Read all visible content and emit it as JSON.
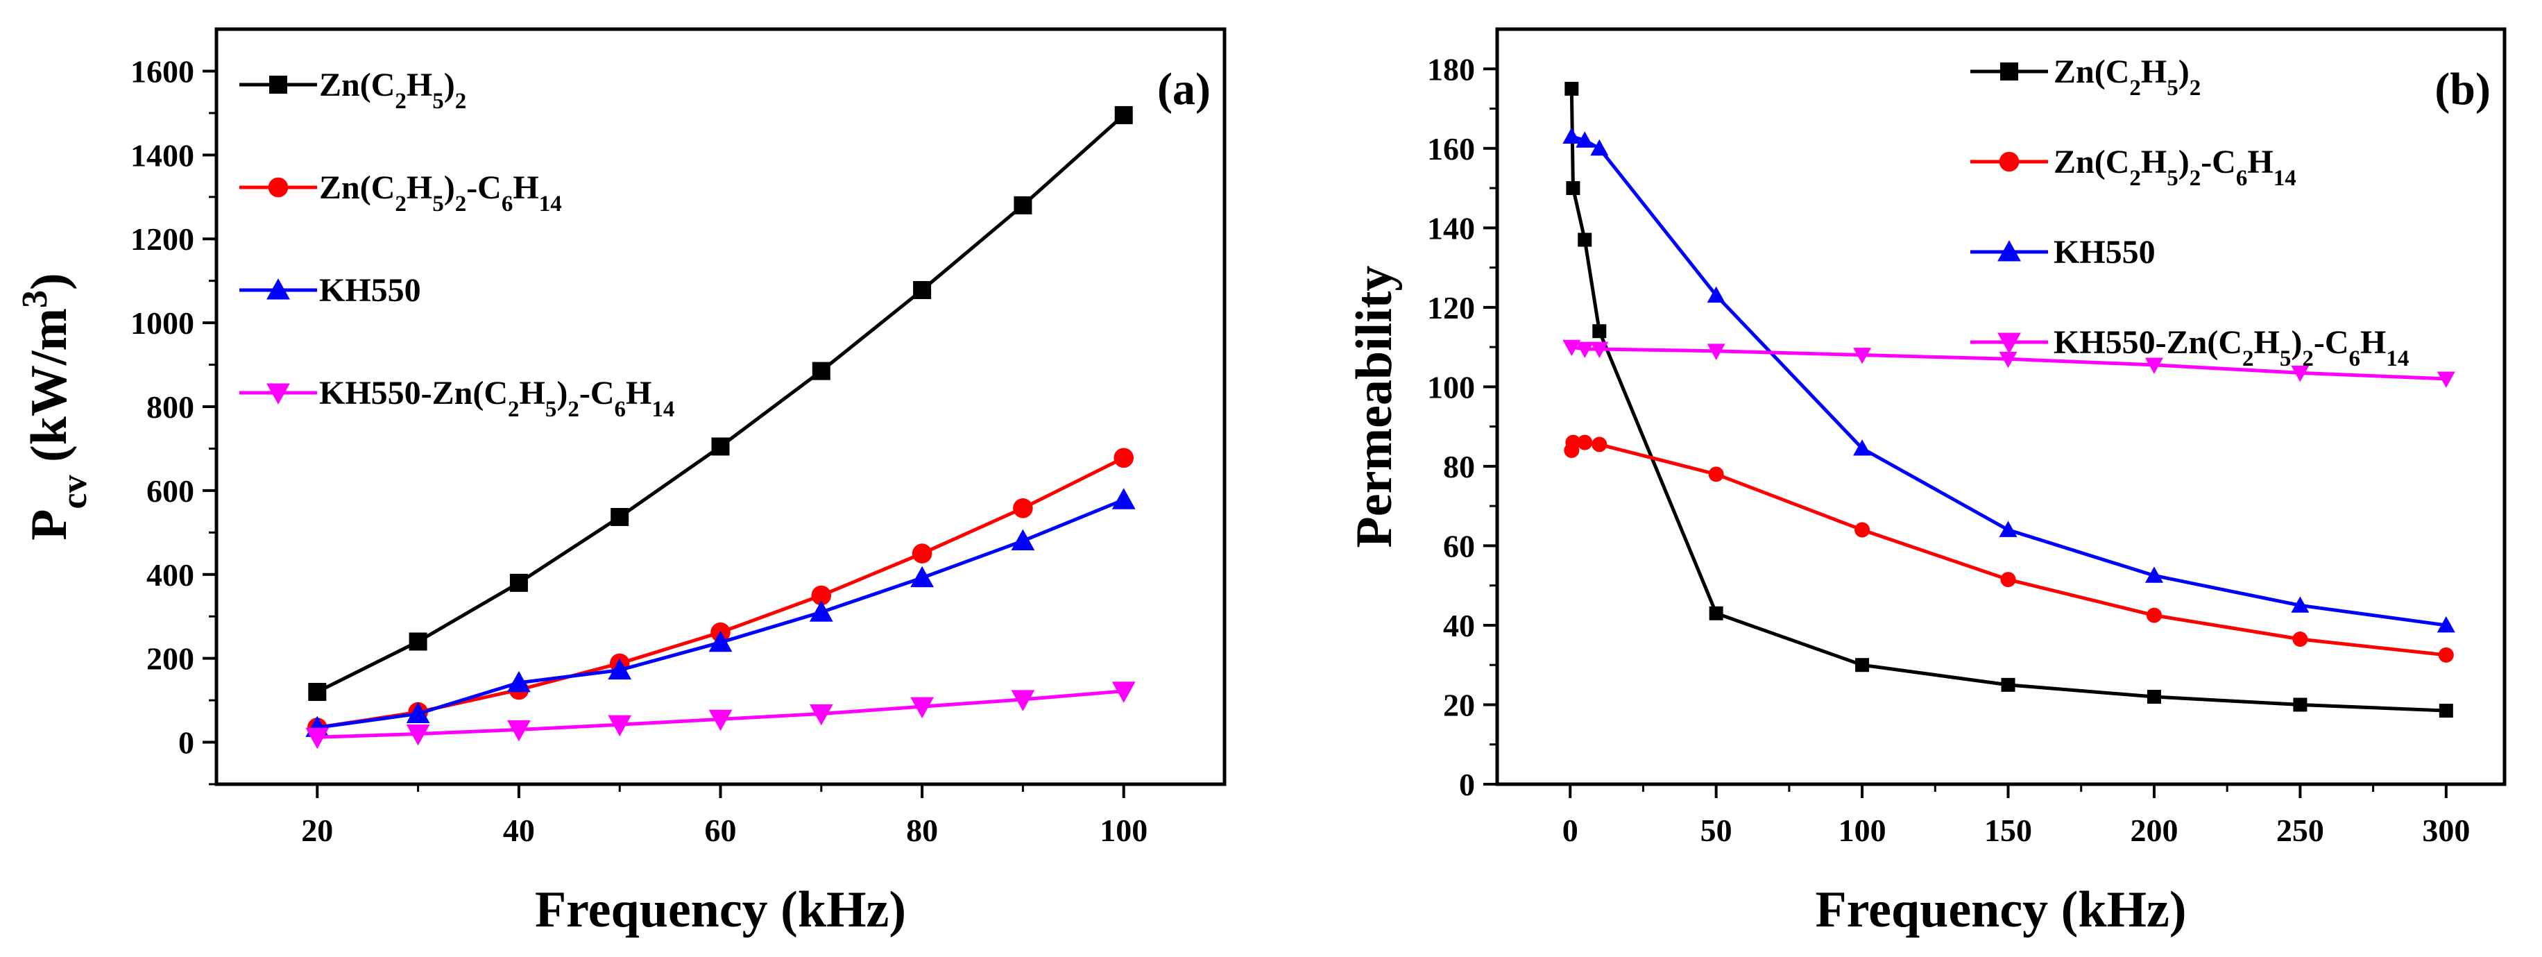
{
  "chart_data": [
    {
      "type": "line",
      "panel_label": "(a)",
      "title": "",
      "xlabel": "Frequency (kHz)",
      "ylabel": "P",
      "ylabel_sub": "cv",
      "ylabel_unit": " (kW/m",
      "ylabel_sup": "3",
      "ylabel_close": ")",
      "xlim": [
        10,
        110
      ],
      "ylim": [
        -100,
        1700
      ],
      "xticks": [
        20,
        40,
        60,
        80,
        100
      ],
      "yticks": [
        0,
        200,
        400,
        600,
        800,
        1000,
        1200,
        1400,
        1600
      ],
      "x": [
        20,
        30,
        40,
        50,
        60,
        70,
        80,
        90,
        100
      ],
      "legend_position": "top-left",
      "series": [
        {
          "name": "Zn(C2H5)2",
          "legend_parts": [
            [
              "Zn(C",
              ""
            ],
            [
              "2",
              "sub"
            ],
            [
              "H",
              ""
            ],
            [
              "5",
              "sub"
            ],
            [
              ")",
              ""
            ],
            [
              "2",
              "sub"
            ]
          ],
          "color": "#000000",
          "marker": "square",
          "values": [
            120,
            240,
            380,
            537,
            705,
            885,
            1078,
            1280,
            1495
          ]
        },
        {
          "name": "Zn(C2H5)2-C6H14",
          "legend_parts": [
            [
              "Zn(C",
              ""
            ],
            [
              "2",
              "sub"
            ],
            [
              "H",
              ""
            ],
            [
              "5",
              "sub"
            ],
            [
              ")",
              ""
            ],
            [
              "2",
              "sub"
            ],
            [
              "-C",
              ""
            ],
            [
              "6",
              "sub"
            ],
            [
              "H",
              ""
            ],
            [
              "14",
              "sub"
            ]
          ],
          "color": "#ff0000",
          "marker": "circle",
          "values": [
            35,
            72,
            125,
            188,
            262,
            350,
            450,
            558,
            678
          ]
        },
        {
          "name": "KH550",
          "legend_parts": [
            [
              "KH550",
              ""
            ]
          ],
          "color": "#0000ff",
          "marker": "triangle-up",
          "values": [
            35,
            68,
            142,
            172,
            238,
            310,
            392,
            480,
            578
          ]
        },
        {
          "name": "KH550-Zn(C2H5)2-C6H14",
          "legend_parts": [
            [
              "KH550-Zn(C",
              ""
            ],
            [
              "2",
              "sub"
            ],
            [
              "H",
              ""
            ],
            [
              "5",
              "sub"
            ],
            [
              ")",
              ""
            ],
            [
              "2",
              "sub"
            ],
            [
              "-C",
              ""
            ],
            [
              "6",
              "sub"
            ],
            [
              "H",
              ""
            ],
            [
              "14",
              "sub"
            ]
          ],
          "color": "#ff00ff",
          "marker": "triangle-down",
          "values": [
            12,
            20,
            30,
            42,
            55,
            68,
            85,
            102,
            122
          ]
        }
      ]
    },
    {
      "type": "line",
      "panel_label": "(b)",
      "title": "",
      "xlabel": "Frequency (kHz)",
      "ylabel": "Permeability",
      "xlim": [
        -25,
        320
      ],
      "ylim": [
        0,
        190
      ],
      "xticks": [
        0,
        50,
        100,
        150,
        200,
        250,
        300
      ],
      "yticks": [
        0,
        20,
        40,
        60,
        80,
        100,
        120,
        140,
        160,
        180
      ],
      "legend_position": "top-center",
      "series": [
        {
          "name": "Zn(C2H5)2",
          "legend_parts": [
            [
              "Zn(C",
              ""
            ],
            [
              "2",
              "sub"
            ],
            [
              "H",
              ""
            ],
            [
              "5",
              "sub"
            ],
            [
              ")",
              ""
            ],
            [
              "2",
              "sub"
            ]
          ],
          "color": "#000000",
          "marker": "square",
          "x": [
            0.5,
            1,
            5,
            10,
            50,
            100,
            150,
            200,
            250,
            300
          ],
          "values": [
            175,
            150,
            137,
            114,
            43,
            30,
            25,
            22,
            20,
            18.5
          ]
        },
        {
          "name": "Zn(C2H5)2-C6H14",
          "legend_parts": [
            [
              "Zn(C",
              ""
            ],
            [
              "2",
              "sub"
            ],
            [
              "H",
              ""
            ],
            [
              "5",
              "sub"
            ],
            [
              ")",
              ""
            ],
            [
              "2",
              "sub"
            ],
            [
              "-C",
              ""
            ],
            [
              "6",
              "sub"
            ],
            [
              "H",
              ""
            ],
            [
              "14",
              "sub"
            ]
          ],
          "color": "#ff0000",
          "marker": "circle",
          "x": [
            0.5,
            1,
            5,
            10,
            50,
            100,
            150,
            200,
            250,
            300
          ],
          "values": [
            84,
            86,
            86,
            85.5,
            78,
            64,
            51.5,
            42.5,
            36.5,
            32.5
          ]
        },
        {
          "name": "KH550",
          "legend_parts": [
            [
              "KH550",
              ""
            ]
          ],
          "color": "#0000ff",
          "marker": "triangle-up",
          "x": [
            0.5,
            5,
            10,
            50,
            100,
            150,
            200,
            250,
            300
          ],
          "values": [
            163,
            162,
            160,
            123,
            84.5,
            64,
            52.5,
            45,
            40
          ]
        },
        {
          "name": "KH550-Zn(C2H5)2-C6H14",
          "legend_parts": [
            [
              "KH550-Zn(C",
              ""
            ],
            [
              "2",
              "sub"
            ],
            [
              "H",
              ""
            ],
            [
              "5",
              "sub"
            ],
            [
              ")",
              ""
            ],
            [
              "2",
              "sub"
            ],
            [
              "-C",
              ""
            ],
            [
              "6",
              "sub"
            ],
            [
              "H",
              ""
            ],
            [
              "14",
              "sub"
            ]
          ],
          "color": "#ff00ff",
          "marker": "triangle-down",
          "x": [
            0.5,
            5,
            10,
            50,
            100,
            150,
            200,
            250,
            300
          ],
          "values": [
            110,
            109.5,
            109.5,
            109,
            108,
            107,
            105.5,
            103.5,
            102
          ]
        }
      ]
    }
  ]
}
